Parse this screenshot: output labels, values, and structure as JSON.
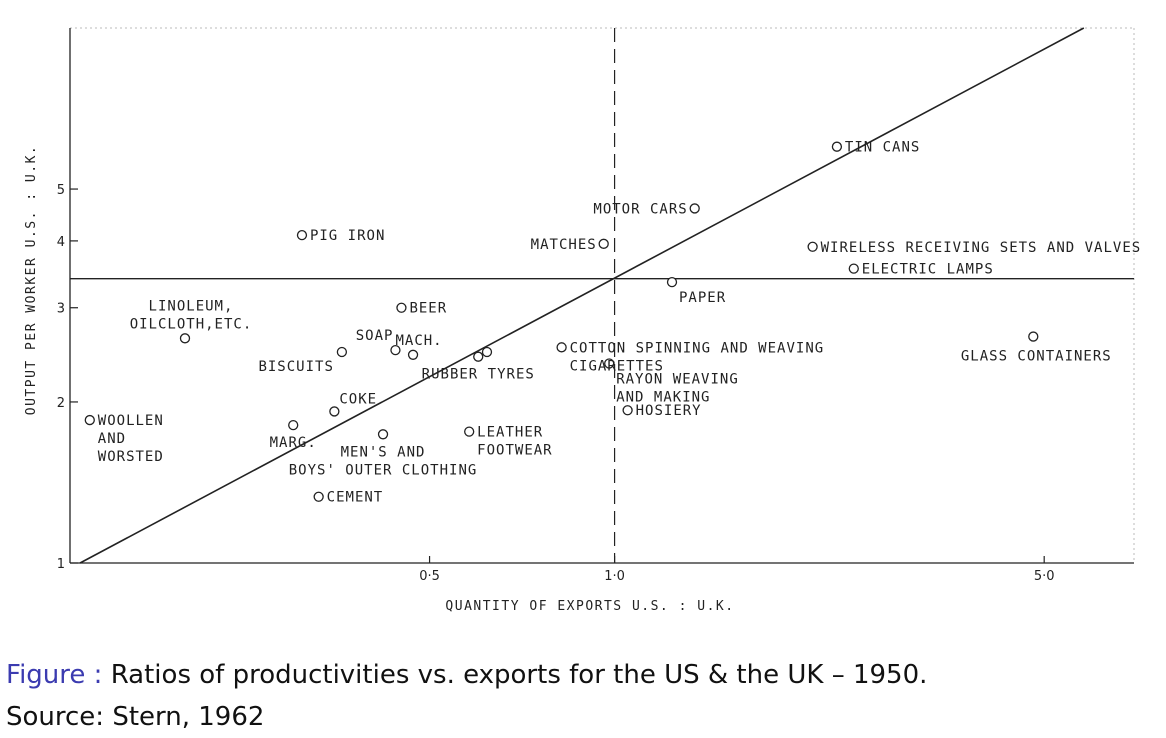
{
  "chart_data": {
    "type": "scatter",
    "x_scale": "log",
    "y_scale": "log",
    "xlabel": "QUANTITY OF EXPORTS  U.S. : U.K.",
    "ylabel": "OUTPUT PER WORKER U.S. : U.K.",
    "xlim": [
      0.13,
      7.0
    ],
    "ylim": [
      1,
      10
    ],
    "x_ticks": [
      {
        "value": 0.5,
        "label": "0·5"
      },
      {
        "value": 1.0,
        "label": "1·0"
      },
      {
        "value": 5.0,
        "label": "5·0"
      }
    ],
    "y_ticks": [
      {
        "value": 1,
        "label": "1"
      },
      {
        "value": 2,
        "label": "2"
      },
      {
        "value": 3,
        "label": "3"
      },
      {
        "value": 4,
        "label": "4"
      },
      {
        "value": 5,
        "label": "5"
      }
    ],
    "reference_lines": {
      "vertical_x": 1.0,
      "horizontal_y": 3.4,
      "diagonal": [
        [
          0.135,
          1.0
        ],
        [
          5.8,
          10.0
        ]
      ]
    },
    "points": [
      {
        "x": 0.31,
        "y": 4.1,
        "label_lines": [
          "PIG IRON"
        ],
        "label_anchor": "right"
      },
      {
        "x": 0.2,
        "y": 2.63,
        "label_lines": [
          "LINOLEUM,",
          "OILCLOTH,ETC."
        ],
        "label_anchor": "above"
      },
      {
        "x": 0.14,
        "y": 1.85,
        "label_lines": [
          "WOOLLEN",
          "AND",
          "WORSTED"
        ],
        "label_anchor": "right"
      },
      {
        "x": 0.36,
        "y": 2.48,
        "label_lines": [
          "BISCUITS"
        ],
        "label_anchor": "below-left"
      },
      {
        "x": 0.35,
        "y": 1.92,
        "label_lines": [
          "COKE"
        ],
        "label_anchor": "above-right"
      },
      {
        "x": 0.3,
        "y": 1.81,
        "label_lines": [
          "MARG."
        ],
        "label_anchor": "below"
      },
      {
        "x": 0.45,
        "y": 3.0,
        "label_lines": [
          "BEER"
        ],
        "label_anchor": "right"
      },
      {
        "x": 0.44,
        "y": 2.5,
        "label_lines": [
          "SOAP"
        ],
        "label_anchor": "above-left"
      },
      {
        "x": 0.47,
        "y": 2.45,
        "label_lines": [
          "MACH."
        ],
        "label_anchor": "above"
      },
      {
        "x": 0.42,
        "y": 1.74,
        "label_lines": [
          "MEN'S AND",
          "BOYS' OUTER CLOTHING"
        ],
        "label_anchor": "below"
      },
      {
        "x": 0.33,
        "y": 1.33,
        "label_lines": [
          "CEMENT"
        ],
        "label_anchor": "right"
      },
      {
        "x": 0.6,
        "y": 2.43,
        "label_lines": [
          "RUBBER TYRES"
        ],
        "label_anchor": "below"
      },
      {
        "x": 0.62,
        "y": 2.48,
        "label_lines": [],
        "label_anchor": "none"
      },
      {
        "x": 0.58,
        "y": 1.76,
        "label_lines": [
          "LEATHER",
          "FOOTWEAR"
        ],
        "label_anchor": "right"
      },
      {
        "x": 0.82,
        "y": 2.53,
        "label_lines": [
          "COTTON SPINNING AND WEAVING",
          "CIGARETTES"
        ],
        "label_anchor": "right"
      },
      {
        "x": 0.96,
        "y": 3.95,
        "label_lines": [
          "MATCHES"
        ],
        "label_anchor": "left"
      },
      {
        "x": 1.35,
        "y": 4.6,
        "label_lines": [
          "MOTOR CARS"
        ],
        "label_anchor": "left"
      },
      {
        "x": 1.24,
        "y": 3.35,
        "label_lines": [
          "PAPER"
        ],
        "label_anchor": "below-right"
      },
      {
        "x": 0.98,
        "y": 2.36,
        "label_lines": [
          "RAYON WEAVING",
          "AND MAKING"
        ],
        "label_anchor": "below-right"
      },
      {
        "x": 1.05,
        "y": 1.93,
        "label_lines": [
          "HOSIERY"
        ],
        "label_anchor": "right"
      },
      {
        "x": 2.3,
        "y": 6.0,
        "label_lines": [
          "TIN CANS"
        ],
        "label_anchor": "right"
      },
      {
        "x": 2.1,
        "y": 3.9,
        "label_lines": [
          "WIRELESS RECEIVING SETS AND VALVES"
        ],
        "label_anchor": "right"
      },
      {
        "x": 2.45,
        "y": 3.55,
        "label_lines": [
          "ELECTRIC LAMPS"
        ],
        "label_anchor": "right"
      },
      {
        "x": 4.8,
        "y": 2.65,
        "label_lines": [
          "GLASS CONTAINERS"
        ],
        "label_anchor": "below-split"
      }
    ]
  },
  "caption": {
    "figure_prefix": "Figure :",
    "figure_text": "Ratios of productivities vs. exports for the US & the UK – 1950.",
    "source": "Source:  Stern, 1962"
  }
}
